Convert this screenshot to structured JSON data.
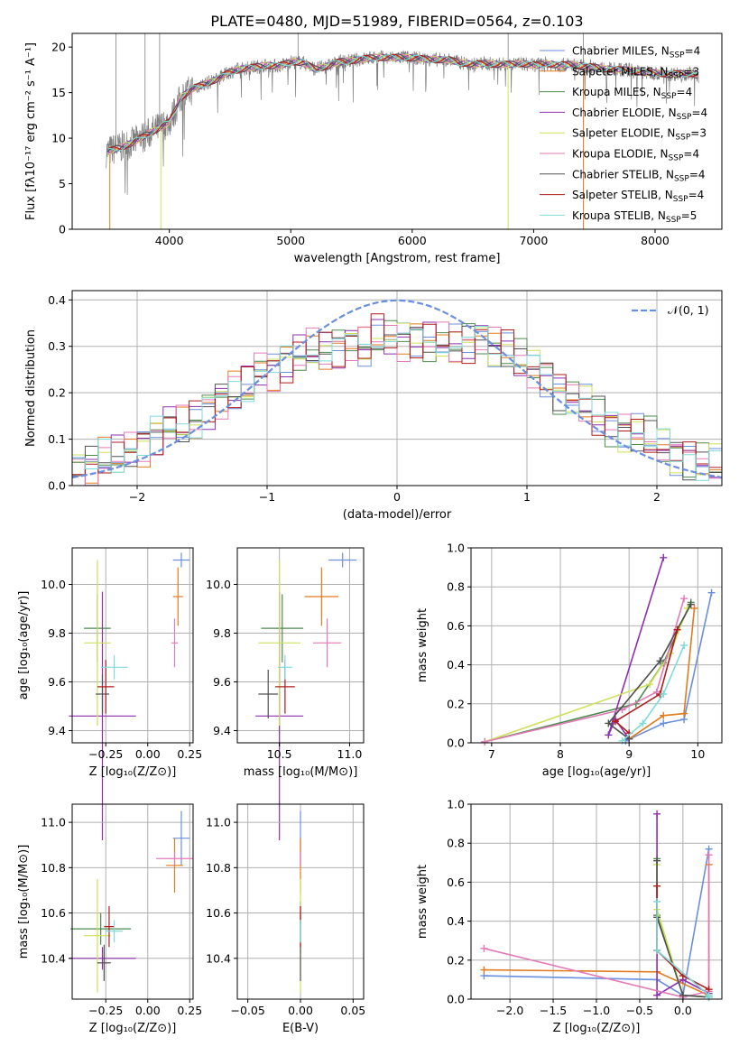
{
  "figure_title": "PLATE=0480, MJD=51989, FIBERID=0564, z=0.103",
  "colors": {
    "axes": "#000000",
    "grid": "#b0b0b0",
    "models": [
      "#6a8fde",
      "#e07b20",
      "#4e8a4e",
      "#8e2fb0",
      "#cfe05a",
      "#e37ab8",
      "#505050",
      "#b01c1c",
      "#7fdadc"
    ],
    "data": "#7f7f7f"
  },
  "legend_spectrum": [
    {
      "base": "Chabrier MILES, N",
      "sub": "SSP",
      "val": "=4"
    },
    {
      "base": "Salpeter MILES, N",
      "sub": "SSP",
      "val": "=3"
    },
    {
      "base": "Kroupa MILES, N",
      "sub": "SSP",
      "val": "=4"
    },
    {
      "base": "Chabrier ELODIE, N",
      "sub": "SSP",
      "val": "=4"
    },
    {
      "base": "Salpeter ELODIE, N",
      "sub": "SSP",
      "val": "=3"
    },
    {
      "base": "Kroupa ELODIE, N",
      "sub": "SSP",
      "val": "=4"
    },
    {
      "base": "Chabrier STELIB, N",
      "sub": "SSP",
      "val": "=4"
    },
    {
      "base": "Salpeter STELIB, N",
      "sub": "SSP",
      "val": "=4"
    },
    {
      "base": "Kroupa STELIB, N",
      "sub": "SSP",
      "val": "=5"
    }
  ],
  "legend_hist": "𝒩(0, 1)",
  "chart_data": [
    {
      "id": "spectrum",
      "type": "line",
      "xlabel": "wavelength [Angstrom, rest frame]",
      "ylabel": "Flux [fλ10⁻¹⁷ erg cm⁻² s⁻¹ A⁻¹]",
      "xlim": [
        3200,
        8550
      ],
      "ylim": [
        0,
        21.5
      ],
      "xticks": [
        4000,
        5000,
        6000,
        7000,
        8000
      ],
      "yticks": [
        0,
        5,
        10,
        15,
        20
      ],
      "x": [
        3480,
        3600,
        3700,
        3800,
        3900,
        4000,
        4100,
        4200,
        4300,
        4400,
        4500,
        4600,
        4700,
        4800,
        4900,
        5000,
        5100,
        5200,
        5300,
        5400,
        5500,
        5600,
        5700,
        5800,
        5900,
        6000,
        6100,
        6200,
        6300,
        6400,
        6500,
        6600,
        6700,
        6800,
        6900,
        7000,
        7100,
        7200,
        7300,
        7400,
        7500,
        7600,
        7700,
        7800,
        7900,
        8000,
        8100,
        8200,
        8300,
        8360
      ],
      "y": [
        8.5,
        9.0,
        9.5,
        10.3,
        11.0,
        11.8,
        14.5,
        15.5,
        16.0,
        16.5,
        17.3,
        17.6,
        17.8,
        18.0,
        17.9,
        18.4,
        18.3,
        17.6,
        17.9,
        18.4,
        18.5,
        18.7,
        18.9,
        18.8,
        18.9,
        18.8,
        18.7,
        18.6,
        18.6,
        18.3,
        18.1,
        18.2,
        18.1,
        18.1,
        18.2,
        18.0,
        18.2,
        18.0,
        18.1,
        17.9,
        17.8,
        17.6,
        17.5,
        17.5,
        17.2,
        17.2,
        17.0,
        17.1,
        17.1,
        16.8
      ],
      "grid": false,
      "legend": "right"
    },
    {
      "id": "residuals",
      "type": "histogram",
      "xlabel": "(data-model)/error",
      "ylabel": "Normed distribution",
      "xlim": [
        -2.5,
        2.5
      ],
      "ylim": [
        0,
        0.42
      ],
      "xticks": [
        -2,
        -1,
        0,
        1,
        2
      ],
      "yticks": [
        0.0,
        0.1,
        0.2,
        0.3,
        0.4
      ],
      "bin_width": 0.1,
      "bin_centers": [
        -2.45,
        -2.35,
        -2.25,
        -2.15,
        -2.05,
        -1.95,
        -1.85,
        -1.75,
        -1.65,
        -1.55,
        -1.45,
        -1.35,
        -1.25,
        -1.15,
        -1.05,
        -0.95,
        -0.85,
        -0.75,
        -0.65,
        -0.55,
        -0.45,
        -0.35,
        -0.25,
        -0.15,
        -0.05,
        0.05,
        0.15,
        0.25,
        0.35,
        0.45,
        0.55,
        0.65,
        0.75,
        0.85,
        0.95,
        1.05,
        1.15,
        1.25,
        1.35,
        1.45,
        1.55,
        1.65,
        1.75,
        1.85,
        1.95,
        2.05,
        2.15,
        2.25,
        2.35,
        2.45
      ],
      "counts": [
        0.04,
        0.045,
        0.06,
        0.06,
        0.075,
        0.09,
        0.11,
        0.13,
        0.125,
        0.14,
        0.17,
        0.19,
        0.2,
        0.21,
        0.25,
        0.25,
        0.27,
        0.28,
        0.29,
        0.29,
        0.3,
        0.31,
        0.3,
        0.32,
        0.32,
        0.315,
        0.32,
        0.31,
        0.31,
        0.3,
        0.31,
        0.32,
        0.3,
        0.29,
        0.27,
        0.25,
        0.24,
        0.2,
        0.19,
        0.17,
        0.15,
        0.13,
        0.12,
        0.11,
        0.1,
        0.08,
        0.07,
        0.06,
        0.05,
        0.04
      ],
      "curve": "normal(0,1)",
      "grid": true,
      "legend": "top-right"
    },
    {
      "id": "age-Z",
      "type": "errorbar",
      "xlabel": "Z [log₁₀(Z/Z⊙)]",
      "ylabel": "age  [log₁₀(age/yr)]",
      "xlim": [
        -0.45,
        0.27
      ],
      "ylim": [
        9.35,
        10.15
      ],
      "xticks": [
        -0.25,
        0.0,
        0.25
      ],
      "xticklabels": [
        "−0.25",
        "0.00",
        "0.25"
      ],
      "yticks": [
        9.4,
        9.6,
        9.8,
        10.0
      ],
      "points": [
        {
          "x": 0.2,
          "y": 10.1,
          "xerr": 0.05,
          "yerr": 0.03
        },
        {
          "x": 0.18,
          "y": 9.95,
          "xerr": 0.03,
          "yerr": 0.12
        },
        {
          "x": -0.3,
          "y": 9.82,
          "xerr": 0.08,
          "yerr": 0.14
        },
        {
          "x": -0.27,
          "y": 9.46,
          "xerr": 0.2,
          "yerr": 0.51
        },
        {
          "x": -0.3,
          "y": 9.76,
          "xerr": 0.08,
          "yerr": 0.34
        },
        {
          "x": 0.16,
          "y": 9.76,
          "xerr": 0.02,
          "yerr": 0.1
        },
        {
          "x": -0.27,
          "y": 9.55,
          "xerr": 0.04,
          "yerr": 0.08
        },
        {
          "x": -0.25,
          "y": 9.58,
          "xerr": 0.05,
          "yerr": 0.11
        },
        {
          "x": -0.2,
          "y": 9.66,
          "xerr": 0.08,
          "yerr": 0.05
        }
      ]
    },
    {
      "id": "age-mass",
      "type": "errorbar",
      "xlabel": "mass [log₁₀(M/M⊙)]",
      "ylabel": "",
      "xlim": [
        10.2,
        11.1
      ],
      "ylim": [
        9.35,
        10.15
      ],
      "xticks": [
        10.5,
        11.0
      ],
      "xticklabels": [
        "10.5",
        "11.0"
      ],
      "yticks": [
        9.4,
        9.6,
        9.8,
        10.0
      ],
      "points": [
        {
          "x": 10.95,
          "y": 10.1,
          "xerr": 0.1,
          "yerr": 0.03
        },
        {
          "x": 10.8,
          "y": 9.95,
          "xerr": 0.12,
          "yerr": 0.12
        },
        {
          "x": 10.52,
          "y": 9.82,
          "xerr": 0.15,
          "yerr": 0.14
        },
        {
          "x": 10.5,
          "y": 9.46,
          "xerr": 0.17,
          "yerr": 0.51
        },
        {
          "x": 10.5,
          "y": 9.76,
          "xerr": 0.15,
          "yerr": 0.34
        },
        {
          "x": 10.84,
          "y": 9.76,
          "xerr": 0.1,
          "yerr": 0.1
        },
        {
          "x": 10.42,
          "y": 9.55,
          "xerr": 0.07,
          "yerr": 0.1
        },
        {
          "x": 10.54,
          "y": 9.58,
          "xerr": 0.07,
          "yerr": 0.11
        },
        {
          "x": 10.54,
          "y": 9.66,
          "xerr": 0.05,
          "yerr": 0.05
        }
      ]
    },
    {
      "id": "weight-age",
      "type": "line",
      "xlabel": "age  [log₁₀(age/yr)]",
      "ylabel": "mass weight",
      "xlim": [
        6.7,
        10.35
      ],
      "ylim": [
        0,
        1
      ],
      "xticks": [
        7,
        8,
        9,
        10
      ],
      "yticks": [
        0.0,
        0.2,
        0.4,
        0.6,
        0.8,
        1.0
      ],
      "series": [
        {
          "x": [
            10.2,
            9.8,
            9.5,
            8.95
          ],
          "y": [
            0.77,
            0.12,
            0.1,
            0.01
          ]
        },
        {
          "x": [
            9.95,
            9.8,
            9.5,
            9.0
          ],
          "y": [
            0.69,
            0.15,
            0.14,
            0.02
          ]
        },
        {
          "x": [
            9.9,
            9.5,
            9.1,
            6.9
          ],
          "y": [
            0.72,
            0.41,
            0.2,
            0.005
          ]
        },
        {
          "x": [
            9.5,
            8.7,
            8.8,
            9.0
          ],
          "y": [
            0.95,
            0.04,
            0.12,
            0.02
          ]
        },
        {
          "x": [
            9.85,
            9.6,
            9.3,
            6.9
          ],
          "y": [
            0.69,
            0.46,
            0.3,
            0.005
          ]
        },
        {
          "x": [
            9.8,
            9.4,
            8.9,
            6.9
          ],
          "y": [
            0.74,
            0.26,
            0.17,
            0.005
          ]
        },
        {
          "x": [
            9.9,
            9.45,
            8.7,
            9.0
          ],
          "y": [
            0.71,
            0.42,
            0.1,
            0.02
          ]
        },
        {
          "x": [
            9.7,
            9.45,
            8.8,
            9.0
          ],
          "y": [
            0.58,
            0.25,
            0.11,
            0.05
          ]
        },
        {
          "x": [
            9.8,
            9.5,
            9.2,
            8.9
          ],
          "y": [
            0.5,
            0.25,
            0.1,
            0.01
          ]
        }
      ]
    },
    {
      "id": "mass-Z",
      "type": "errorbar",
      "xlabel": "Z [log₁₀(Z/Z⊙)]",
      "ylabel": "mass [log₁₀(M/M⊙)]",
      "xlim": [
        -0.45,
        0.27
      ],
      "ylim": [
        10.22,
        11.08
      ],
      "xticks": [
        -0.25,
        0.0,
        0.25
      ],
      "xticklabels": [
        "−0.25",
        "0.00",
        "0.25"
      ],
      "yticks": [
        10.4,
        10.6,
        10.8,
        11.0
      ],
      "points": [
        {
          "x": 0.2,
          "y": 10.93,
          "xerr": 0.05,
          "yerr": 0.12
        },
        {
          "x": 0.16,
          "y": 10.81,
          "xerr": 0.05,
          "yerr": 0.12
        },
        {
          "x": -0.28,
          "y": 10.53,
          "xerr": 0.18,
          "yerr": 0.07
        },
        {
          "x": -0.27,
          "y": 10.4,
          "xerr": 0.2,
          "yerr": 0.05
        },
        {
          "x": -0.3,
          "y": 10.5,
          "xerr": 0.08,
          "yerr": 0.25
        },
        {
          "x": 0.16,
          "y": 10.84,
          "xerr": 0.11,
          "yerr": 0.03
        },
        {
          "x": -0.26,
          "y": 10.38,
          "xerr": 0.04,
          "yerr": 0.08
        },
        {
          "x": -0.23,
          "y": 10.54,
          "xerr": 0.03,
          "yerr": 0.09
        },
        {
          "x": -0.2,
          "y": 10.52,
          "xerr": 0.05,
          "yerr": 0.05
        }
      ]
    },
    {
      "id": "mass-EBV",
      "type": "errorbar",
      "xlabel": "E(B-V)",
      "ylabel": "",
      "xlim": [
        -0.06,
        0.06
      ],
      "ylim": [
        10.22,
        11.08
      ],
      "xticks": [
        -0.05,
        0.0,
        0.05
      ],
      "xticklabels": [
        "−0.05",
        "0.00",
        "0.05"
      ],
      "yticks": [
        10.4,
        10.6,
        10.8,
        11.0
      ],
      "points": [
        {
          "x": 0.0,
          "y": 10.93,
          "xerr": 0.0,
          "yerr": 0.12
        },
        {
          "x": 0.0,
          "y": 10.81,
          "xerr": 0.0,
          "yerr": 0.12
        },
        {
          "x": 0.0,
          "y": 10.53,
          "xerr": 0.0,
          "yerr": 0.07
        },
        {
          "x": 0.0,
          "y": 10.6,
          "xerr": 0.0,
          "yerr": 0.05
        },
        {
          "x": 0.0,
          "y": 10.5,
          "xerr": 0.0,
          "yerr": 0.25
        },
        {
          "x": 0.0,
          "y": 10.84,
          "xerr": 0.0,
          "yerr": 0.03
        },
        {
          "x": 0.0,
          "y": 10.38,
          "xerr": 0.0,
          "yerr": 0.08
        },
        {
          "x": 0.0,
          "y": 10.54,
          "xerr": 0.0,
          "yerr": 0.09
        },
        {
          "x": 0.0,
          "y": 10.52,
          "xerr": 0.0,
          "yerr": 0.05
        }
      ]
    },
    {
      "id": "weight-Z",
      "type": "line",
      "xlabel": "Z [log₁₀(Z/Z⊙)]",
      "ylabel": "mass weight",
      "xlim": [
        -2.45,
        0.45
      ],
      "ylim": [
        0,
        1
      ],
      "xticks": [
        -2.0,
        -1.5,
        -1.0,
        -0.5,
        0.0
      ],
      "xticklabels": [
        "−2.0",
        "−1.5",
        "−1.0",
        "−0.5",
        "0.0"
      ],
      "yticks": [
        0.0,
        0.2,
        0.4,
        0.6,
        0.8,
        1.0
      ],
      "series": [
        {
          "x": [
            0.3,
            0.0,
            -0.3,
            -2.3
          ],
          "y": [
            0.77,
            0.02,
            0.1,
            0.12
          ]
        },
        {
          "x": [
            0.3,
            0.3,
            -0.3,
            -2.3
          ],
          "y": [
            0.69,
            0.02,
            0.14,
            0.15
          ]
        },
        {
          "x": [
            -0.3,
            -0.3,
            0.0,
            0.3
          ],
          "y": [
            0.72,
            0.43,
            0.02,
            0.01
          ]
        },
        {
          "x": [
            -0.3,
            -0.3,
            0.0,
            0.3
          ],
          "y": [
            0.95,
            0.02,
            0.1,
            0.03
          ]
        },
        {
          "x": [
            -0.3,
            -0.3,
            0.0,
            0.3
          ],
          "y": [
            0.69,
            0.46,
            0.02,
            0.01
          ]
        },
        {
          "x": [
            -2.3,
            0.0,
            0.3,
            0.3
          ],
          "y": [
            0.26,
            0.01,
            0.04,
            0.74
          ]
        },
        {
          "x": [
            -0.3,
            -0.3,
            0.0,
            0.3
          ],
          "y": [
            0.71,
            0.42,
            0.02,
            0.01
          ]
        },
        {
          "x": [
            -0.3,
            -0.3,
            0.0,
            0.3
          ],
          "y": [
            0.58,
            0.25,
            0.12,
            0.05
          ]
        },
        {
          "x": [
            -0.3,
            -0.3,
            0.3,
            0.3
          ],
          "y": [
            0.5,
            0.25,
            0.02,
            0.01
          ]
        }
      ]
    }
  ]
}
